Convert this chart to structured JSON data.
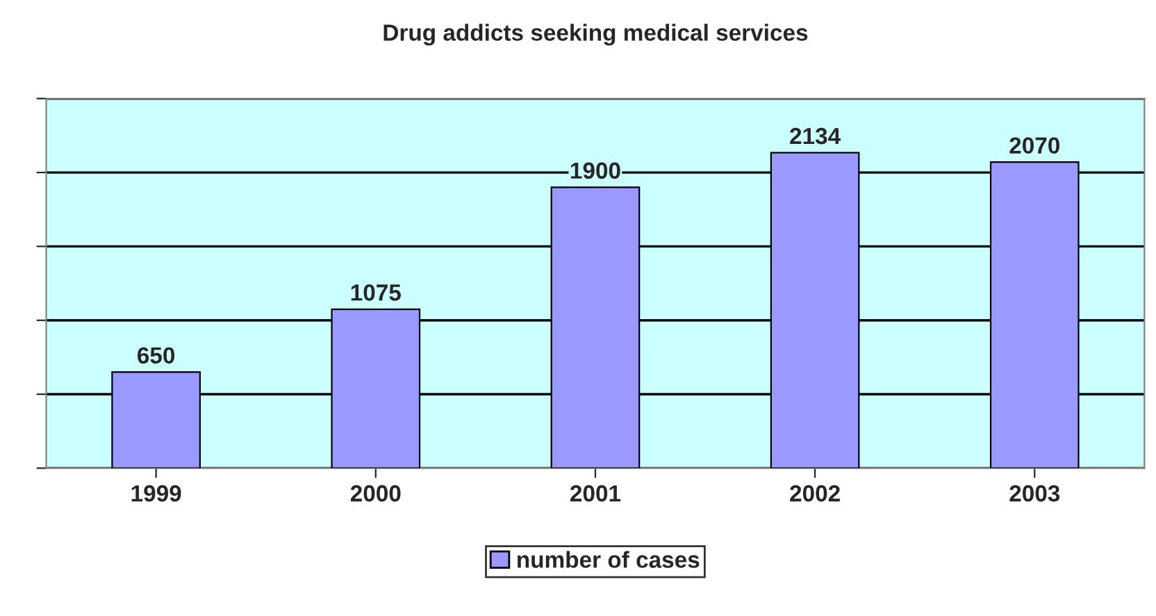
{
  "chart_data": {
    "type": "bar",
    "title": "Drug addicts seeking medical services",
    "categories": [
      "1999",
      "2000",
      "2001",
      "2002",
      "2003"
    ],
    "series": [
      {
        "name": "number of cases",
        "color": "#9999ff",
        "values": [
          650,
          1075,
          1900,
          2134,
          2070
        ]
      }
    ],
    "data_labels": true,
    "ylim": [
      0,
      2500
    ],
    "yticks": [
      {
        "value": 0,
        "label": null
      },
      {
        "value": 500,
        "label": null
      },
      {
        "value": 1000,
        "label": null
      },
      {
        "value": 1500,
        "label": null
      },
      {
        "value": 2000,
        "label": null
      },
      {
        "value": 2500,
        "label": null
      }
    ],
    "tick_labels": "x",
    "grid": "y",
    "legend": "bottom"
  }
}
